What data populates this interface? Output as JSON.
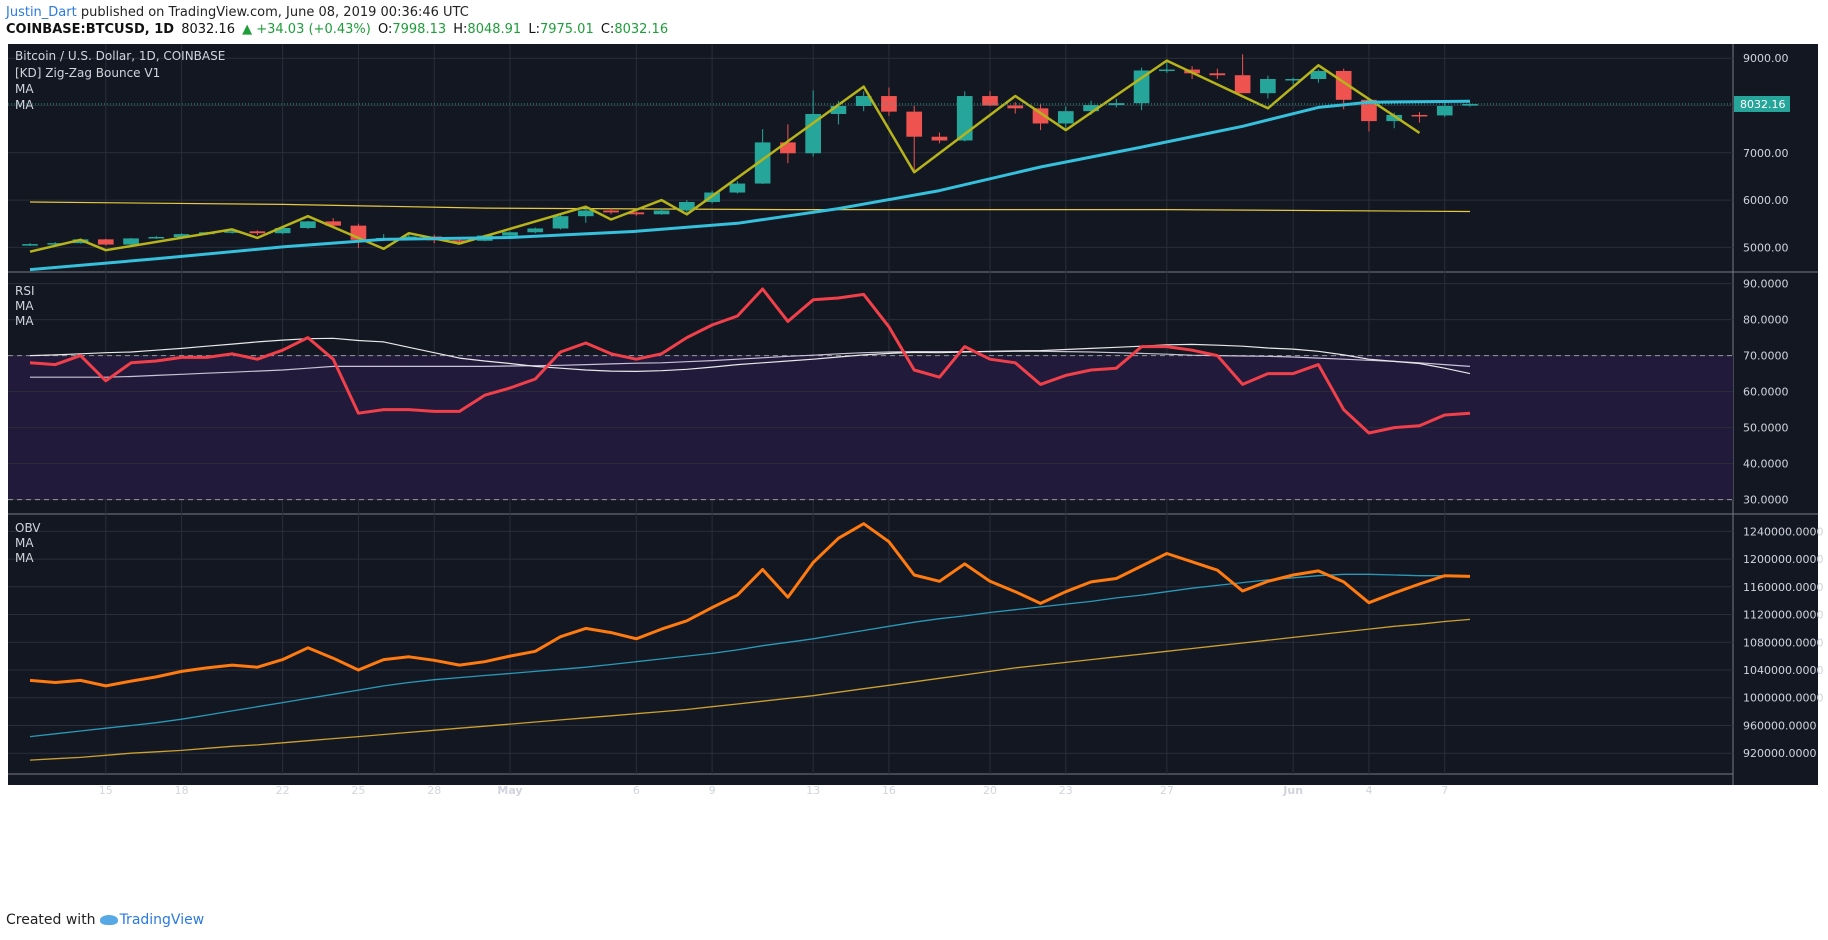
{
  "header": {
    "author": "Justin_Dart",
    "published": "published on TradingView.com, June 08, 2019 00:36:46 UTC",
    "symbol": "COINBASE:BTCUSD, 1D",
    "price": "8032.16",
    "change": "▲ +34.03 (+0.43%)",
    "o_label": "O:",
    "o_value": "7998.13",
    "h_label": "H:",
    "h_value": "8048.91",
    "l_label": "L:",
    "l_value": "7975.01",
    "c_label": "C:",
    "c_value": "8032.16"
  },
  "footer": {
    "created_with": "Created with",
    "brand": "TradingView"
  },
  "colors": {
    "background": "#131722",
    "grid": "#2a2e39",
    "up": "#26a69a",
    "down": "#ef5350",
    "zigzag": "#b7b41a",
    "ma_fast": "#35c0dc",
    "ma_slow": "#e6c93f",
    "rsi": "#f2404a",
    "obv": "#ff7a0f",
    "obv_ma1": "#2a99b8",
    "obv_ma2": "#caa033",
    "rsi_band": "#221a3a"
  },
  "chart_data": [
    {
      "type": "candlestick",
      "title": "Bitcoin / U.S. Dollar, 1D, COINBASE",
      "legend": [
        "[KD] Zig-Zag Bounce V1",
        "MA",
        "MA"
      ],
      "price_label": "8032.16",
      "ylim": [
        4480,
        9300
      ],
      "yticks": [
        "9000.00",
        "8000.00",
        "7000.00",
        "6000.00",
        "5000.00"
      ],
      "x_ticks": [
        {
          "i": 3,
          "label": "15"
        },
        {
          "i": 6,
          "label": "18"
        },
        {
          "i": 10,
          "label": "22"
        },
        {
          "i": 13,
          "label": "25"
        },
        {
          "i": 16,
          "label": "28"
        },
        {
          "i": 19,
          "label": "May"
        },
        {
          "i": 24,
          "label": "6"
        },
        {
          "i": 27,
          "label": "9"
        },
        {
          "i": 31,
          "label": "13"
        },
        {
          "i": 34,
          "label": "16"
        },
        {
          "i": 38,
          "label": "20"
        },
        {
          "i": 41,
          "label": "23"
        },
        {
          "i": 45,
          "label": "27"
        },
        {
          "i": 50,
          "label": "Jun"
        },
        {
          "i": 53,
          "label": "4"
        },
        {
          "i": 56,
          "label": "7"
        }
      ],
      "candles": [
        {
          "o": 5060,
          "h": 5090,
          "l": 5030,
          "c": 5070
        },
        {
          "o": 5070,
          "h": 5110,
          "l": 5050,
          "c": 5090
        },
        {
          "o": 5090,
          "h": 5190,
          "l": 5080,
          "c": 5170
        },
        {
          "o": 5170,
          "h": 5180,
          "l": 5040,
          "c": 5060
        },
        {
          "o": 5060,
          "h": 5200,
          "l": 5050,
          "c": 5190
        },
        {
          "o": 5190,
          "h": 5240,
          "l": 5180,
          "c": 5220
        },
        {
          "o": 5220,
          "h": 5300,
          "l": 5210,
          "c": 5280
        },
        {
          "o": 5280,
          "h": 5330,
          "l": 5260,
          "c": 5320
        },
        {
          "o": 5320,
          "h": 5360,
          "l": 5290,
          "c": 5340
        },
        {
          "o": 5340,
          "h": 5360,
          "l": 5260,
          "c": 5300
        },
        {
          "o": 5300,
          "h": 5440,
          "l": 5280,
          "c": 5410
        },
        {
          "o": 5410,
          "h": 5560,
          "l": 5390,
          "c": 5550
        },
        {
          "o": 5550,
          "h": 5620,
          "l": 5440,
          "c": 5460
        },
        {
          "o": 5460,
          "h": 5500,
          "l": 4990,
          "c": 5160
        },
        {
          "o": 5160,
          "h": 5280,
          "l": 5140,
          "c": 5200
        },
        {
          "o": 5200,
          "h": 5300,
          "l": 5180,
          "c": 5230
        },
        {
          "o": 5230,
          "h": 5270,
          "l": 5090,
          "c": 5150
        },
        {
          "o": 5150,
          "h": 5200,
          "l": 5100,
          "c": 5140
        },
        {
          "o": 5140,
          "h": 5270,
          "l": 5130,
          "c": 5250
        },
        {
          "o": 5250,
          "h": 5340,
          "l": 5230,
          "c": 5320
        },
        {
          "o": 5320,
          "h": 5420,
          "l": 5300,
          "c": 5400
        },
        {
          "o": 5400,
          "h": 5700,
          "l": 5380,
          "c": 5660
        },
        {
          "o": 5660,
          "h": 5840,
          "l": 5520,
          "c": 5780
        },
        {
          "o": 5780,
          "h": 5830,
          "l": 5700,
          "c": 5740
        },
        {
          "o": 5740,
          "h": 5760,
          "l": 5670,
          "c": 5700
        },
        {
          "o": 5700,
          "h": 5830,
          "l": 5690,
          "c": 5780
        },
        {
          "o": 5780,
          "h": 6000,
          "l": 5740,
          "c": 5960
        },
        {
          "o": 5960,
          "h": 6200,
          "l": 5930,
          "c": 6160
        },
        {
          "o": 6160,
          "h": 6400,
          "l": 6140,
          "c": 6350
        },
        {
          "o": 6350,
          "h": 7500,
          "l": 6340,
          "c": 7220
        },
        {
          "o": 7220,
          "h": 7600,
          "l": 6780,
          "c": 6990
        },
        {
          "o": 6990,
          "h": 8320,
          "l": 6920,
          "c": 7820
        },
        {
          "o": 7820,
          "h": 8100,
          "l": 7600,
          "c": 7990
        },
        {
          "o": 7990,
          "h": 8300,
          "l": 7880,
          "c": 8200
        },
        {
          "o": 8200,
          "h": 8380,
          "l": 7780,
          "c": 7870
        },
        {
          "o": 7870,
          "h": 7990,
          "l": 6590,
          "c": 7340
        },
        {
          "o": 7340,
          "h": 7430,
          "l": 7200,
          "c": 7260
        },
        {
          "o": 7260,
          "h": 8300,
          "l": 7240,
          "c": 8200
        },
        {
          "o": 8200,
          "h": 8300,
          "l": 7990,
          "c": 8000
        },
        {
          "o": 8000,
          "h": 8070,
          "l": 7830,
          "c": 7940
        },
        {
          "o": 7940,
          "h": 8020,
          "l": 7480,
          "c": 7620
        },
        {
          "o": 7620,
          "h": 7980,
          "l": 7500,
          "c": 7880
        },
        {
          "o": 7880,
          "h": 8100,
          "l": 7800,
          "c": 8010
        },
        {
          "o": 8010,
          "h": 8140,
          "l": 7960,
          "c": 8050
        },
        {
          "o": 8050,
          "h": 8800,
          "l": 7900,
          "c": 8740
        },
        {
          "o": 8740,
          "h": 8950,
          "l": 8690,
          "c": 8760
        },
        {
          "o": 8760,
          "h": 8830,
          "l": 8560,
          "c": 8680
        },
        {
          "o": 8680,
          "h": 8780,
          "l": 8560,
          "c": 8640
        },
        {
          "o": 8640,
          "h": 9080,
          "l": 8300,
          "c": 8260
        },
        {
          "o": 8260,
          "h": 8630,
          "l": 8150,
          "c": 8560
        },
        {
          "o": 8560,
          "h": 8590,
          "l": 8440,
          "c": 8560
        },
        {
          "o": 8560,
          "h": 8760,
          "l": 8480,
          "c": 8730
        },
        {
          "o": 8730,
          "h": 8780,
          "l": 7920,
          "c": 8120
        },
        {
          "o": 8120,
          "h": 8140,
          "l": 7450,
          "c": 7670
        },
        {
          "o": 7670,
          "h": 7850,
          "l": 7520,
          "c": 7800
        },
        {
          "o": 7800,
          "h": 7860,
          "l": 7640,
          "c": 7790
        },
        {
          "o": 7790,
          "h": 8100,
          "l": 7760,
          "c": 7990
        },
        {
          "o": 7998,
          "h": 8049,
          "l": 7975,
          "c": 8032
        }
      ],
      "zigzag": [
        {
          "i": 0,
          "v": 4910
        },
        {
          "i": 2,
          "v": 5160
        },
        {
          "i": 3,
          "v": 4940
        },
        {
          "i": 8,
          "v": 5380
        },
        {
          "i": 9,
          "v": 5200
        },
        {
          "i": 11,
          "v": 5660
        },
        {
          "i": 14,
          "v": 4970
        },
        {
          "i": 15,
          "v": 5300
        },
        {
          "i": 17,
          "v": 5080
        },
        {
          "i": 22,
          "v": 5860
        },
        {
          "i": 23,
          "v": 5590
        },
        {
          "i": 25,
          "v": 6000
        },
        {
          "i": 26,
          "v": 5700
        },
        {
          "i": 33,
          "v": 8400
        },
        {
          "i": 35,
          "v": 6590
        },
        {
          "i": 39,
          "v": 8200
        },
        {
          "i": 41,
          "v": 7480
        },
        {
          "i": 45,
          "v": 8950
        },
        {
          "i": 49,
          "v": 7940
        },
        {
          "i": 51,
          "v": 8850
        },
        {
          "i": 55,
          "v": 7420
        }
      ],
      "ma_fast": [
        {
          "i": 0,
          "v": 4530
        },
        {
          "i": 5,
          "v": 4760
        },
        {
          "i": 10,
          "v": 5010
        },
        {
          "i": 14,
          "v": 5170
        },
        {
          "i": 19,
          "v": 5210
        },
        {
          "i": 24,
          "v": 5340
        },
        {
          "i": 28,
          "v": 5510
        },
        {
          "i": 32,
          "v": 5820
        },
        {
          "i": 36,
          "v": 6200
        },
        {
          "i": 40,
          "v": 6700
        },
        {
          "i": 44,
          "v": 7120
        },
        {
          "i": 48,
          "v": 7560
        },
        {
          "i": 51,
          "v": 7960
        },
        {
          "i": 53,
          "v": 8070
        },
        {
          "i": 57,
          "v": 8090
        }
      ],
      "ma_slow": [
        {
          "i": 0,
          "v": 5960
        },
        {
          "i": 10,
          "v": 5910
        },
        {
          "i": 18,
          "v": 5830
        },
        {
          "i": 30,
          "v": 5800
        },
        {
          "i": 45,
          "v": 5800
        },
        {
          "i": 57,
          "v": 5760
        }
      ]
    },
    {
      "type": "line",
      "title": "RSI",
      "legend": [
        "RSI",
        "MA",
        "MA"
      ],
      "ylim": [
        26,
        91
      ],
      "band": [
        30,
        70
      ],
      "yticks": [
        "90.0000",
        "80.0000",
        "70.0000",
        "60.0000",
        "50.0000",
        "40.0000",
        "30.0000"
      ],
      "series": [
        {
          "name": "RSI",
          "values": [
            68,
            67.5,
            70,
            63,
            68,
            68.5,
            69.5,
            69.5,
            70.5,
            69,
            71.5,
            75,
            69,
            54,
            55,
            55,
            54.5,
            54.5,
            59,
            61,
            63.5,
            71,
            73.5,
            70.5,
            69,
            70.5,
            75,
            78.5,
            81,
            88.5,
            79.5,
            85.5,
            86,
            87,
            78,
            66,
            64,
            72.5,
            69,
            68,
            62,
            64.5,
            66,
            66.5,
            72.5,
            72.5,
            71.5,
            70,
            62,
            65,
            65,
            67.5,
            55,
            48.5,
            50,
            50.5,
            53.5,
            54
          ]
        },
        {
          "name": "MA",
          "values": [
            70,
            70.2,
            70.5,
            70.8,
            71,
            71.5,
            72,
            72.6,
            73.2,
            73.8,
            74.3,
            74.7,
            74.8,
            74.2,
            73.8,
            72.3,
            70.8,
            69.3,
            68.5,
            67.8,
            67,
            66.5,
            66,
            65.7,
            65.6,
            65.8,
            66.2,
            66.8,
            67.5,
            68,
            68.5,
            69,
            69.6,
            70.2,
            70.6,
            70.9,
            70.8,
            71,
            71.2,
            71.3,
            71.4,
            71.7,
            72,
            72.3,
            72.6,
            73,
            73.1,
            72.9,
            72.6,
            72.1,
            71.8,
            71.2,
            70.2,
            69,
            68.4,
            67.8,
            66.5,
            65
          ]
        },
        {
          "name": "MA",
          "values": [
            64,
            64,
            64,
            64,
            64.2,
            64.5,
            64.8,
            65.1,
            65.4,
            65.7,
            66,
            66.5,
            67,
            67,
            67,
            67,
            67,
            67,
            67,
            67.1,
            67.2,
            67.3,
            67.5,
            67.7,
            67.9,
            68,
            68.3,
            68.6,
            69,
            69.4,
            69.8,
            70.1,
            70.5,
            70.8,
            71,
            71.1,
            71.1,
            71.1,
            71.1,
            71.2,
            71.2,
            71.1,
            71,
            70.8,
            70.6,
            70.4,
            70.1,
            70,
            69.9,
            69.8,
            69.6,
            69.3,
            69,
            68.7,
            68.4,
            68,
            67.5,
            67
          ]
        }
      ]
    },
    {
      "type": "line",
      "title": "OBV",
      "legend": [
        "OBV",
        "MA",
        "MA"
      ],
      "ylim": [
        890000,
        1265000
      ],
      "yticks": [
        "1240000.0000",
        "1200000.0000",
        "1160000.0000",
        "1120000.0000",
        "1080000.0000",
        "1040000.0000",
        "1000000.0000",
        "960000.0000",
        "920000.0000"
      ],
      "series": [
        {
          "name": "OBV",
          "values": [
            1025000,
            1022000,
            1025000,
            1017000,
            1024000,
            1030000,
            1038000,
            1043000,
            1047000,
            1044000,
            1055000,
            1072000,
            1057000,
            1040000,
            1055000,
            1059000,
            1054000,
            1047000,
            1052000,
            1060000,
            1067000,
            1088000,
            1100000,
            1094000,
            1085000,
            1099000,
            1111000,
            1130000,
            1148000,
            1185000,
            1145000,
            1195000,
            1230000,
            1251000,
            1225000,
            1177000,
            1168000,
            1193000,
            1168000,
            1153000,
            1136000,
            1153000,
            1167000,
            1172000,
            1190000,
            1208000,
            1196000,
            1184000,
            1154000,
            1168000,
            1177000,
            1183000,
            1167000,
            1137000,
            1151000,
            1164000,
            1176000,
            1175000
          ]
        },
        {
          "name": "MA",
          "values": [
            944000,
            948000,
            952000,
            956000,
            960000,
            964000,
            969000,
            975000,
            981000,
            987000,
            993000,
            999000,
            1005000,
            1011000,
            1017000,
            1022000,
            1026000,
            1029000,
            1032000,
            1035000,
            1038000,
            1041000,
            1044000,
            1048000,
            1052000,
            1056000,
            1060000,
            1064000,
            1069000,
            1075000,
            1080000,
            1085000,
            1091000,
            1097000,
            1103000,
            1109000,
            1114000,
            1118000,
            1123000,
            1127000,
            1131000,
            1135000,
            1139000,
            1144000,
            1148000,
            1153000,
            1158000,
            1162000,
            1166000,
            1170000,
            1173000,
            1176000,
            1178000,
            1178000,
            1177000,
            1176000,
            1176000,
            1175000
          ]
        },
        {
          "name": "MA",
          "values": [
            910000,
            912000,
            914000,
            917000,
            920000,
            922000,
            924000,
            927000,
            930000,
            932000,
            935000,
            938000,
            941000,
            944000,
            947000,
            950000,
            953000,
            956000,
            959000,
            962000,
            965000,
            968000,
            971000,
            974000,
            977000,
            980000,
            983000,
            987000,
            991000,
            995000,
            999000,
            1003000,
            1008000,
            1013000,
            1018000,
            1023000,
            1028000,
            1033000,
            1038000,
            1043000,
            1047000,
            1051000,
            1055000,
            1059000,
            1063000,
            1067000,
            1071000,
            1075000,
            1079000,
            1083000,
            1087000,
            1091000,
            1095000,
            1099000,
            1103000,
            1106000,
            1110000,
            1113000
          ]
        }
      ]
    }
  ]
}
